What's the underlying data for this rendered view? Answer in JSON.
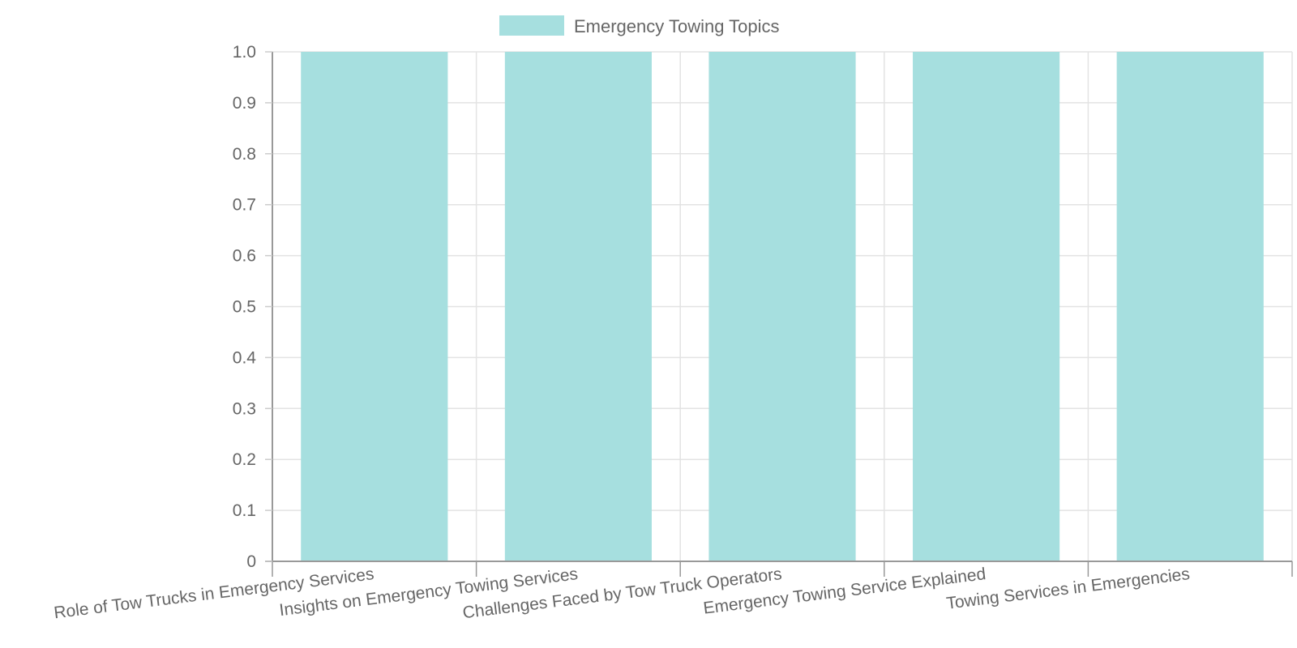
{
  "chart_data": {
    "type": "bar",
    "categories": [
      "Role of Tow Trucks in Emergency Services",
      "Insights on Emergency Towing Services",
      "Challenges Faced by Tow Truck Operators",
      "Emergency Towing Service Explained",
      "Towing Services in Emergencies"
    ],
    "series": [
      {
        "name": "Emergency Towing Topics",
        "values": [
          1,
          1,
          1,
          1,
          1
        ],
        "color": "#a6dfdf"
      }
    ],
    "ylim": [
      0,
      1
    ],
    "yticks": [
      "0",
      "0.1",
      "0.2",
      "0.3",
      "0.4",
      "0.5",
      "0.6",
      "0.7",
      "0.8",
      "0.9",
      "1.0"
    ],
    "title": "",
    "xlabel": "",
    "ylabel": "",
    "legend": "top-center",
    "grid": true
  }
}
